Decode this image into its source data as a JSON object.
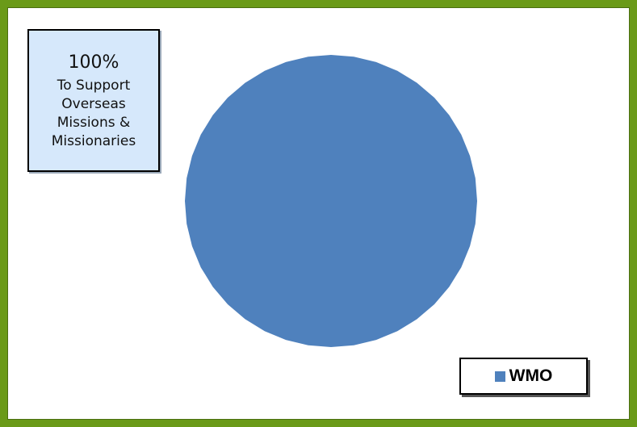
{
  "chart_data": {
    "type": "pie",
    "categories": [
      "WMO"
    ],
    "values": [
      100
    ],
    "colors": [
      "#4f81bd"
    ],
    "legend": "bottom-right",
    "annotation": {
      "value": "100%",
      "lines": [
        "To Support",
        "Overseas",
        "Missions &",
        "Missionaries"
      ]
    }
  },
  "frame_color": "#6a9a18"
}
